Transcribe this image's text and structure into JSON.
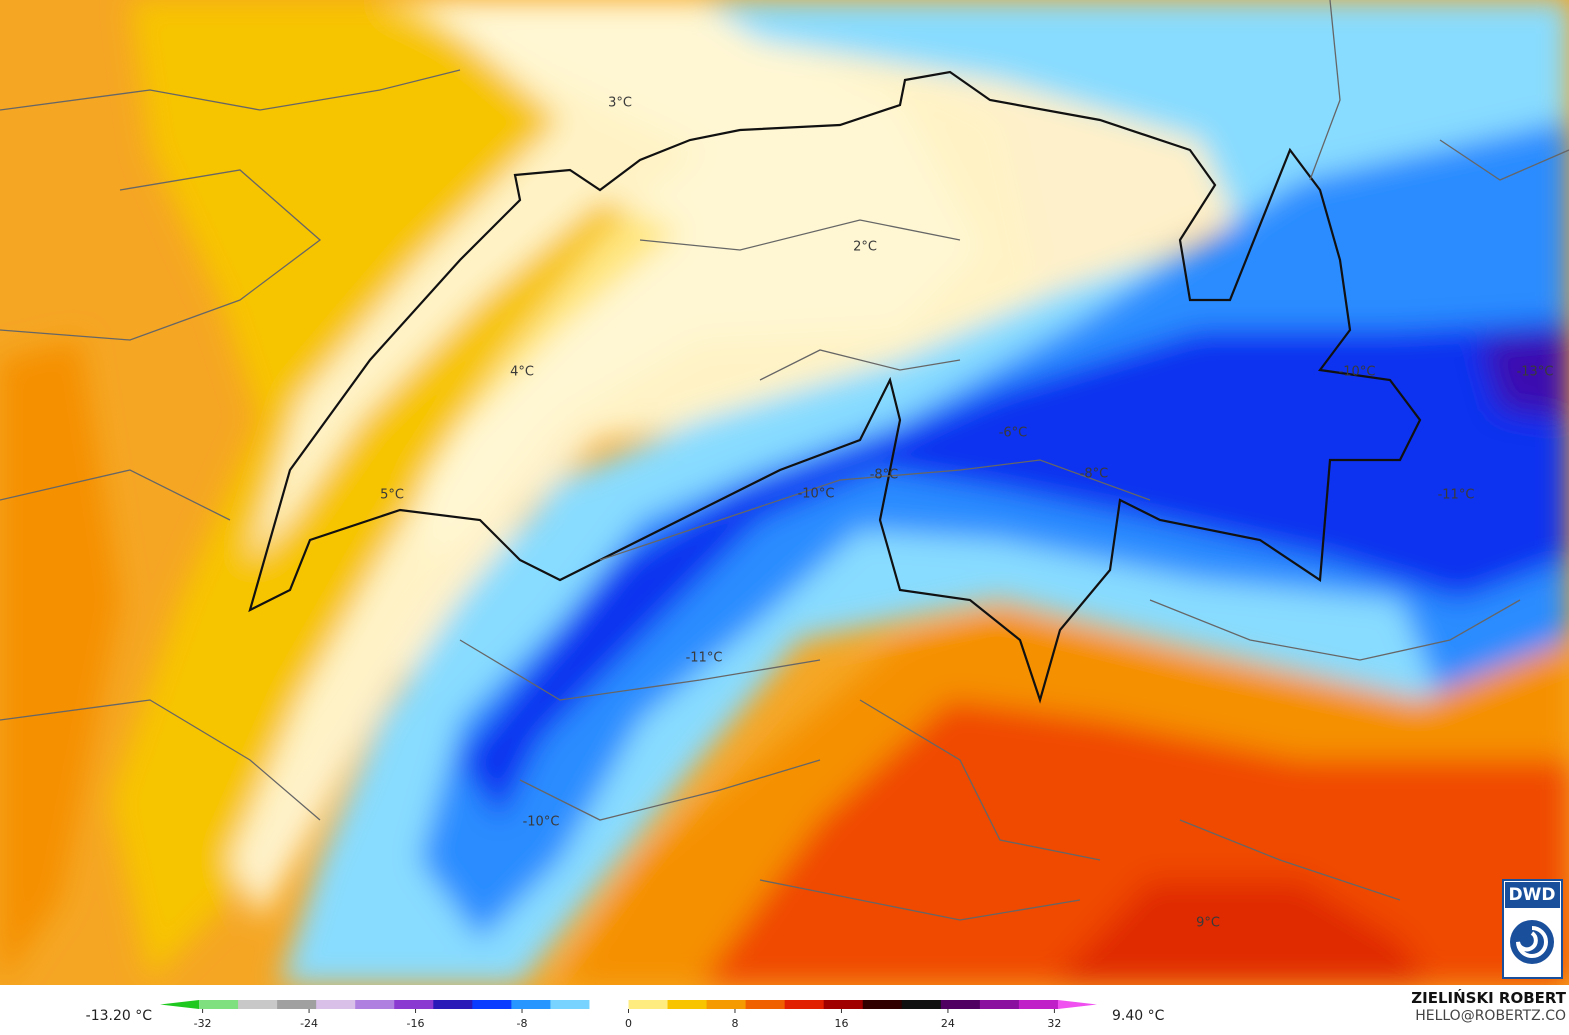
{
  "map": {
    "labels": [
      "3°C",
      "2°C",
      "4°C",
      "5°C",
      "-10°C",
      "-8°C",
      "-6°C",
      "-8°C",
      "-10°C",
      "-13°C",
      "-11°C",
      "-11°C",
      "-10°C",
      "9°C"
    ],
    "badge": "DWD"
  },
  "colorbar": {
    "min_label": "-13.20 °C",
    "max_label": "9.40 °C",
    "range": [
      -35.2,
      35.2
    ],
    "ticks": [
      -32,
      -24,
      -16,
      -8,
      0,
      8,
      16,
      24,
      32
    ],
    "colors": [
      "#1ec81e",
      "#7ee07e",
      "#c8c8c8",
      "#a0a0a0",
      "#d8c0e8",
      "#b080e0",
      "#8a3ad0",
      "#2a1ab8",
      "#0a3cff",
      "#2896ff",
      "#78d4ff",
      "#ffffff",
      "#ffec80",
      "#f8c400",
      "#f59a00",
      "#f06000",
      "#e02000",
      "#a00000",
      "#300000",
      "#101010",
      "#500060",
      "#8a10a0",
      "#c020c8",
      "#f050f0"
    ]
  },
  "credits": {
    "name": "ZIELIŃSKI ROBERT",
    "email": "HELLO@ROBERTZ.CO"
  }
}
